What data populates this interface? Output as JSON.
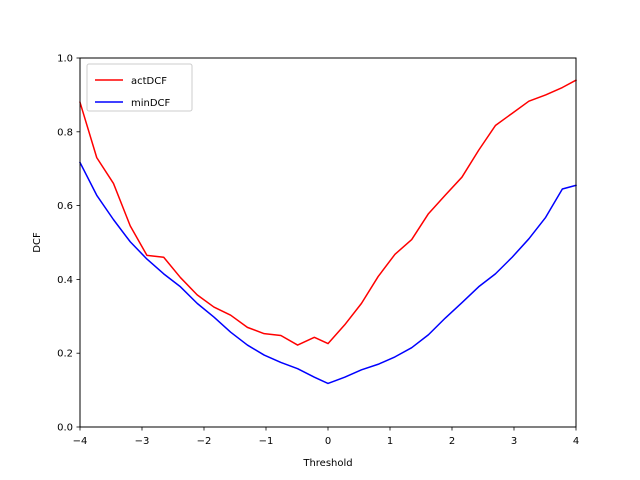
{
  "chart_data": {
    "type": "line",
    "title": "",
    "xlabel": "Threshold",
    "ylabel": "DCF",
    "xlim": [
      -4,
      4
    ],
    "ylim": [
      0,
      1
    ],
    "x_ticks": [
      -4,
      -3,
      -2,
      -1,
      0,
      1,
      2,
      3,
      4
    ],
    "x_tick_labels": [
      "−4",
      "−3",
      "−2",
      "−1",
      "0",
      "1",
      "2",
      "3",
      "4"
    ],
    "y_ticks": [
      0,
      0.2,
      0.4,
      0.6,
      0.8,
      1.0
    ],
    "y_tick_labels": [
      "0.0",
      "0.2",
      "0.4",
      "0.6",
      "0.8",
      "1.0"
    ],
    "grid": false,
    "legend_position": "top-left",
    "x": [
      -4,
      -3.73,
      -3.46,
      -3.19,
      -2.92,
      -2.65,
      -2.38,
      -2.11,
      -1.84,
      -1.57,
      -1.3,
      -1.03,
      -0.76,
      -0.49,
      -0.22,
      0,
      0.27,
      0.54,
      0.81,
      1.08,
      1.35,
      1.62,
      1.89,
      2.16,
      2.43,
      2.7,
      2.97,
      3.24,
      3.51,
      3.78,
      4
    ],
    "series": [
      {
        "name": "actDCF",
        "color": "#ff0000",
        "values": [
          0.88,
          0.73,
          0.66,
          0.545,
          0.465,
          0.46,
          0.405,
          0.358,
          0.325,
          0.303,
          0.27,
          0.253,
          0.248,
          0.222,
          0.243,
          0.226,
          0.277,
          0.335,
          0.408,
          0.468,
          0.508,
          0.578,
          0.628,
          0.677,
          0.75,
          0.817,
          0.85,
          0.883,
          0.9,
          0.92,
          0.94
        ]
      },
      {
        "name": "minDCF",
        "color": "#0000ff",
        "values": [
          0.717,
          0.628,
          0.562,
          0.502,
          0.455,
          0.415,
          0.38,
          0.335,
          0.298,
          0.257,
          0.222,
          0.195,
          0.175,
          0.158,
          0.135,
          0.118,
          0.135,
          0.155,
          0.17,
          0.19,
          0.215,
          0.25,
          0.295,
          0.337,
          0.38,
          0.415,
          0.46,
          0.51,
          0.568,
          0.645,
          0.655
        ]
      }
    ]
  }
}
